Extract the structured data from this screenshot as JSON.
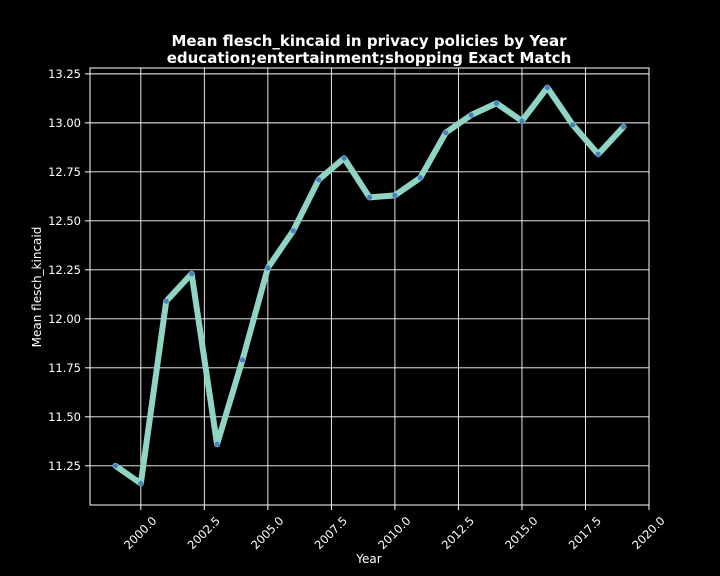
{
  "chart_data": {
    "type": "line",
    "title_line1": "Mean flesch_kincaid in privacy policies by Year",
    "title_line2": "education;entertainment;shopping Exact Match",
    "xlabel": "Year",
    "ylabel": "Mean flesch_kincaid",
    "xlim": [
      1998.0,
      2020.0
    ],
    "ylim": [
      11.05,
      13.28
    ],
    "x_ticks": [
      2000.0,
      2002.5,
      2005.0,
      2007.5,
      2010.0,
      2012.5,
      2015.0,
      2017.5,
      2020.0
    ],
    "x_tick_labels": [
      "2000.0",
      "2002.5",
      "2005.0",
      "2007.5",
      "2010.0",
      "2012.5",
      "2015.0",
      "2017.5",
      "2020.0"
    ],
    "y_ticks": [
      11.25,
      11.5,
      11.75,
      12.0,
      12.25,
      12.5,
      12.75,
      13.0,
      13.25
    ],
    "y_tick_labels": [
      "11.25",
      "11.50",
      "11.75",
      "12.00",
      "12.25",
      "12.50",
      "12.75",
      "13.00",
      "13.25"
    ],
    "grid": true,
    "line_color": "#8fd4c4",
    "marker_color": "#4a7fc1",
    "background": "#000000",
    "x": [
      1999,
      2000,
      2001,
      2002,
      2003,
      2004,
      2005,
      2006,
      2007,
      2008,
      2009,
      2010,
      2011,
      2012,
      2013,
      2014,
      2015,
      2016,
      2017,
      2018,
      2019
    ],
    "values": [
      11.25,
      11.16,
      12.09,
      12.23,
      11.36,
      11.79,
      12.26,
      12.45,
      12.71,
      12.82,
      12.62,
      12.63,
      12.72,
      12.95,
      13.04,
      13.1,
      13.01,
      13.18,
      12.99,
      12.84,
      12.98
    ]
  }
}
